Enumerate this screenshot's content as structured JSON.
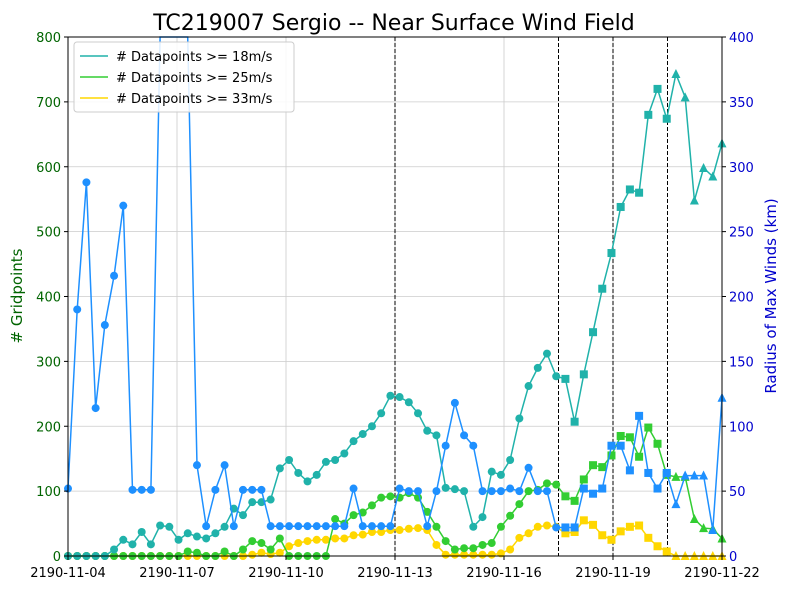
{
  "chart_data": {
    "type": "line",
    "title": "TC219007 Sergio -- Near Surface Wind Field",
    "ylabel_left": "# Gridpoints",
    "ylabel_right": "Radius of Max Winds (km)",
    "xlabel": "",
    "xlim": [
      0,
      18
    ],
    "ylim_left": [
      0,
      800
    ],
    "ylim_right": [
      0,
      400
    ],
    "xticks": [
      {
        "x": 0,
        "label": "2190-11-04"
      },
      {
        "x": 3,
        "label": "2190-11-07"
      },
      {
        "x": 6,
        "label": "2190-11-10"
      },
      {
        "x": 9,
        "label": "2190-11-13"
      },
      {
        "x": 12,
        "label": "2190-11-16"
      },
      {
        "x": 15,
        "label": "2190-11-19"
      },
      {
        "x": 18,
        "label": "2190-11-22"
      }
    ],
    "yticks_left": [
      0,
      100,
      200,
      300,
      400,
      500,
      600,
      700,
      800
    ],
    "yticks_right": [
      0,
      50,
      100,
      150,
      200,
      250,
      300,
      350,
      400
    ],
    "grid": true,
    "legend_position": "top-left",
    "vlines_x": [
      9.0,
      13.5,
      15.0,
      16.5
    ],
    "colors": {
      "s18": "#20b2aa",
      "s25": "#32cd32",
      "s33": "#ffd700",
      "rmw": "#1e90ff",
      "left_axis": "#006400",
      "right_axis": "#0000cd"
    },
    "series": [
      {
        "name": "# Datapoints >= 18m/s",
        "key": "s18",
        "axis": "left",
        "values": [
          0,
          0,
          0,
          0,
          0,
          10,
          25,
          18,
          37,
          18,
          47,
          45,
          25,
          35,
          30,
          27,
          35,
          45,
          73,
          63,
          83,
          83,
          87,
          135,
          148,
          128,
          115,
          125,
          145,
          148,
          158,
          177,
          188,
          200,
          220,
          247,
          245,
          237,
          220,
          193,
          186,
          105,
          103,
          100,
          45,
          60,
          130,
          125,
          148,
          212,
          262,
          290,
          312,
          277,
          273,
          207,
          280,
          345,
          412,
          467,
          538,
          565,
          560,
          680,
          720,
          674,
          743,
          707,
          548,
          598,
          585,
          636
        ]
      },
      {
        "name": "# Datapoints >= 25m/s",
        "key": "s25",
        "axis": "left",
        "values": [
          0,
          0,
          0,
          0,
          0,
          0,
          0,
          0,
          0,
          0,
          0,
          0,
          0,
          7,
          5,
          0,
          0,
          7,
          0,
          10,
          23,
          20,
          10,
          27,
          0,
          0,
          0,
          0,
          0,
          57,
          50,
          63,
          67,
          78,
          90,
          92,
          90,
          97,
          90,
          68,
          45,
          23,
          10,
          12,
          12,
          17,
          20,
          45,
          62,
          80,
          100,
          102,
          112,
          110,
          92,
          85,
          118,
          140,
          137,
          155,
          185,
          183,
          153,
          198,
          173,
          125,
          122,
          122,
          57,
          43,
          42,
          27
        ]
      },
      {
        "name": "# Datapoints >= 33m/s",
        "key": "s33",
        "axis": "left",
        "values": [
          0,
          0,
          0,
          0,
          0,
          0,
          0,
          0,
          0,
          0,
          0,
          0,
          0,
          0,
          0,
          0,
          0,
          0,
          0,
          0,
          2,
          5,
          3,
          5,
          15,
          20,
          23,
          25,
          25,
          27,
          27,
          32,
          33,
          37,
          37,
          40,
          40,
          42,
          43,
          40,
          17,
          2,
          2,
          2,
          2,
          2,
          2,
          4,
          10,
          28,
          35,
          45,
          47,
          45,
          35,
          37,
          55,
          48,
          32,
          25,
          38,
          45,
          47,
          28,
          15,
          7,
          0,
          0,
          0,
          0,
          0,
          0
        ]
      },
      {
        "name": "",
        "key": "rmw",
        "axis": "right",
        "values": [
          52,
          190,
          288,
          114,
          178,
          216,
          270,
          51,
          51,
          51,
          400,
          400,
          400,
          400,
          70,
          23,
          51,
          70,
          23,
          51,
          51,
          51,
          23,
          23,
          23,
          23,
          23,
          23,
          23,
          23,
          23,
          52,
          23,
          23,
          23,
          23,
          52,
          50,
          50,
          23,
          50,
          85,
          118,
          93,
          85,
          50,
          50,
          50,
          52,
          50,
          68,
          50,
          50,
          22,
          22,
          22,
          52,
          48,
          52,
          85,
          85,
          66,
          108,
          64,
          52,
          64,
          40,
          62,
          62,
          62,
          20,
          122
        ]
      }
    ],
    "markers": {
      "start": [
        0,
        1,
        2,
        3,
        4,
        5,
        6,
        7,
        8,
        9,
        10,
        11,
        12,
        13,
        14,
        15,
        16,
        17,
        18,
        19,
        20,
        21,
        22,
        23,
        24,
        25,
        26,
        27,
        28,
        29,
        30,
        31,
        32,
        33,
        34,
        35,
        36,
        37,
        38,
        39,
        40,
        41,
        42,
        43,
        44,
        45,
        46,
        47,
        48,
        49,
        50,
        51,
        52,
        53,
        54,
        55,
        56,
        57,
        58,
        59,
        60,
        61,
        62,
        63,
        64,
        65,
        66,
        67,
        68,
        69,
        70,
        71
      ],
      "segments": [
        {
          "from": 0,
          "to": 53,
          "shape": "circle"
        },
        {
          "from": 54,
          "to": 65,
          "shape": "square"
        },
        {
          "from": 66,
          "to": 71,
          "shape": "triangle"
        }
      ]
    }
  }
}
